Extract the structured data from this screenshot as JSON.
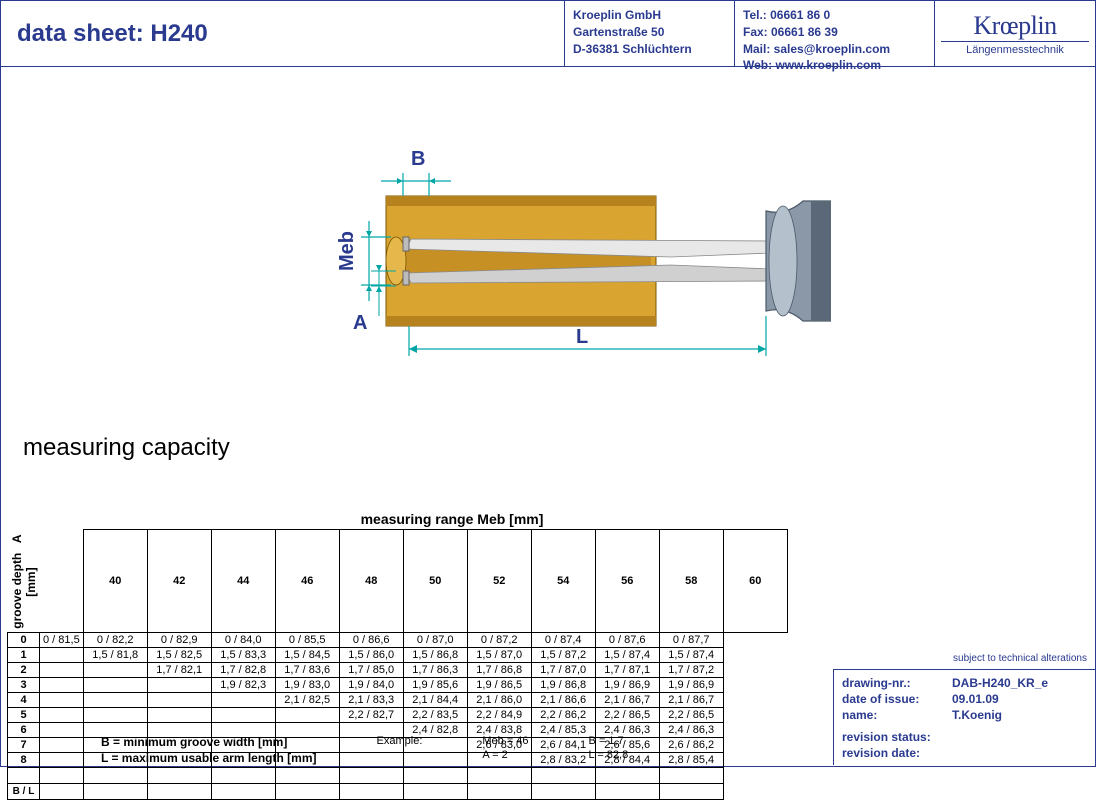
{
  "header": {
    "title": "data sheet:  H240",
    "company": "Kroeplin GmbH",
    "street": "Gartenstraße 50",
    "city": "D-36381 Schlüchtern",
    "tel": "Tel.:   06661 86 0",
    "fax": "Fax:   06661 86 39",
    "mail": "Mail:  sales@kroeplin.com",
    "web": "Web: www.kroeplin.com",
    "brand": "Krœplin",
    "tagline": "Längenmesstechnik"
  },
  "diagram": {
    "label_B": "B",
    "label_Meb": "Meb",
    "label_A": "A",
    "label_L": "L",
    "colors": {
      "brass": "#d9a430",
      "brass_dark": "#b5821e",
      "steel_light": "#f2f2f2",
      "steel_mid": "#bcbcbc",
      "handle": "#8a98a8",
      "handle_dark": "#5a6878",
      "dim": "#00a6a6"
    }
  },
  "section_title": "measuring capacity",
  "table": {
    "title": "measuring range   Meb    [mm]",
    "row_axis_label": "groove depth   A\n[mm]",
    "cols": [
      "40",
      "42",
      "44",
      "46",
      "48",
      "50",
      "52",
      "54",
      "56",
      "58",
      "60"
    ],
    "rows": [
      {
        "idx": "0",
        "cells": [
          "0 / 81,5",
          "0 / 82,2",
          "0 / 82,9",
          "0 / 84,0",
          "0 / 85,5",
          "0 / 86,6",
          "0 / 87,0",
          "0 / 87,2",
          "0 / 87,4",
          "0 / 87,6",
          "0 / 87,7"
        ]
      },
      {
        "idx": "1",
        "cells": [
          "",
          "1,5 / 81,8",
          "1,5 / 82,5",
          "1,5 / 83,3",
          "1,5 / 84,5",
          "1,5 / 86,0",
          "1,5 / 86,8",
          "1,5 / 87,0",
          "1,5 / 87,2",
          "1,5 / 87,4",
          "1,5 / 87,4"
        ]
      },
      {
        "idx": "2",
        "cells": [
          "",
          "",
          "1,7 / 82,1",
          "1,7 / 82,8",
          "1,7 / 83,6",
          "1,7 / 85,0",
          "1,7 / 86,3",
          "1,7 / 86,8",
          "1,7 / 87,0",
          "1,7 / 87,1",
          "1,7 / 87,2"
        ]
      },
      {
        "idx": "3",
        "cells": [
          "",
          "",
          "",
          "1,9 / 82,3",
          "1,9 / 83,0",
          "1,9 / 84,0",
          "1,9 / 85,6",
          "1,9 / 86,5",
          "1,9 / 86,8",
          "1,9 / 86,9",
          "1,9 / 86,9"
        ]
      },
      {
        "idx": "4",
        "cells": [
          "",
          "",
          "",
          "",
          "2,1 / 82,5",
          "2,1 / 83,3",
          "2,1 / 84,4",
          "2,1 / 86,0",
          "2,1 / 86,6",
          "2,1 / 86,7",
          "2,1 / 86,7"
        ]
      },
      {
        "idx": "5",
        "cells": [
          "",
          "",
          "",
          "",
          "",
          "2,2 / 82,7",
          "2,2 / 83,5",
          "2,2 / 84,9",
          "2,2 / 86,2",
          "2,2 / 86,5",
          "2,2 / 86,5"
        ]
      },
      {
        "idx": "6",
        "cells": [
          "",
          "",
          "",
          "",
          "",
          "",
          "2,4 / 82,8",
          "2,4 / 83,8",
          "2,4 / 85,3",
          "2,4 / 86,3",
          "2,4 / 86,3"
        ]
      },
      {
        "idx": "7",
        "cells": [
          "",
          "",
          "",
          "",
          "",
          "",
          "",
          "2,6 / 83,0",
          "2,6 / 84,1",
          "2,6 / 85,6",
          "2,6 / 86,2"
        ]
      },
      {
        "idx": "8",
        "cells": [
          "",
          "",
          "",
          "",
          "",
          "",
          "",
          "",
          "2,8 / 83,2",
          "2,8 / 84,4",
          "2,8 / 85,4"
        ]
      }
    ],
    "bl_label": "B / L"
  },
  "legend": {
    "b_def": "B = minimum groove width [mm]",
    "l_def": "L = maximum usable arm length [mm]",
    "example_label": "Example:",
    "ex_meb": "Meb = 46",
    "ex_a": "A  = 2",
    "ex_b": "B  = 1,7",
    "ex_l": "L  = 82,8"
  },
  "meta": {
    "note": "subject to technical alterations",
    "drawing_label": "drawing-nr.:",
    "drawing_val": "DAB-H240_KR_e",
    "date_label": "date of issue:",
    "date_val": "09.01.09",
    "name_label": "name:",
    "name_val": "T.Koenig",
    "rev_status_label": "revision status:",
    "rev_status_val": "",
    "rev_date_label": "revision date:",
    "rev_date_val": ""
  }
}
